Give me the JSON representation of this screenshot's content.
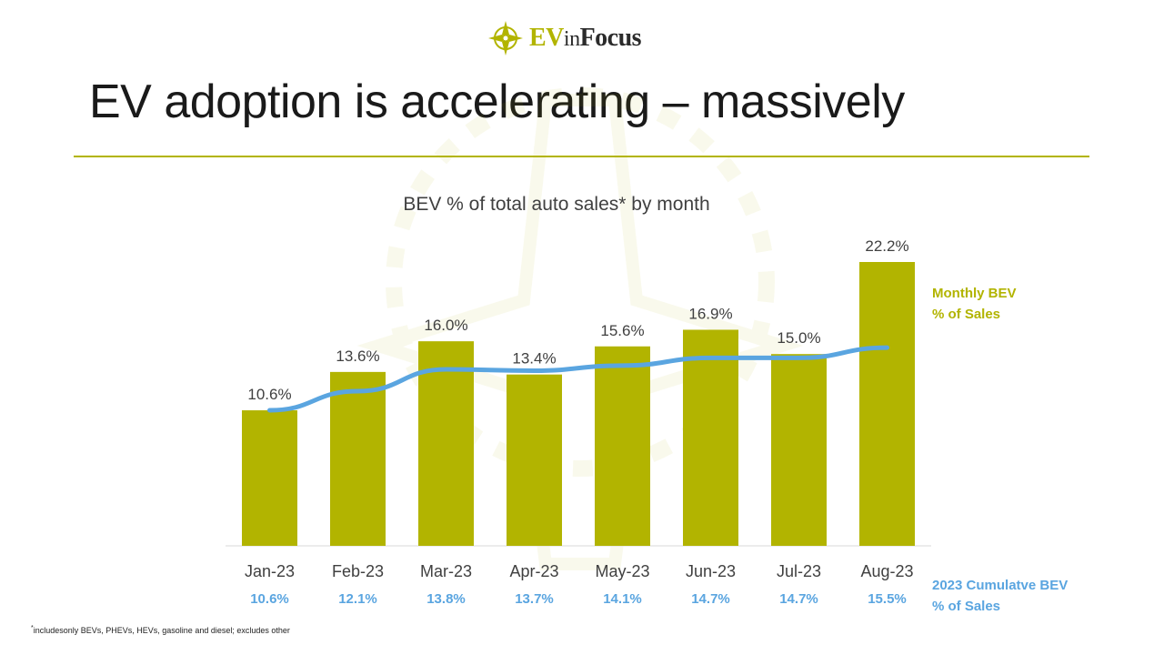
{
  "logo": {
    "ev": "EV",
    "in": "in",
    "focus": "Focus"
  },
  "header": {
    "title": "EV adoption is accelerating – massively"
  },
  "footnote": {
    "marker": "*",
    "text": "includesonly BEVs, PHEVs, HEVs, gasoline and diesel; excludes other"
  },
  "colors": {
    "bar": "#b2b400",
    "line": "#5aa5e0",
    "cumulative_text": "#5aa5e0",
    "axis": "#d9d9d9"
  },
  "chart_data": {
    "type": "bar",
    "title": "BEV % of total auto sales* by month",
    "categories": [
      "Jan-23",
      "Feb-23",
      "Mar-23",
      "Apr-23",
      "May-23",
      "Jun-23",
      "Jul-23",
      "Aug-23"
    ],
    "ylim": [
      0,
      25
    ],
    "series": [
      {
        "name": "Monthly BEV % of Sales",
        "legend_lines": [
          "Monthly BEV",
          "% of Sales"
        ],
        "type": "bar",
        "values": [
          10.6,
          13.6,
          16.0,
          13.4,
          15.6,
          16.9,
          15.0,
          22.2
        ],
        "labels": [
          "10.6%",
          "13.6%",
          "16.0%",
          "13.4%",
          "15.6%",
          "16.9%",
          "15.0%",
          "22.2%"
        ]
      },
      {
        "name": "2023 Cumulatve BEV % of Sales",
        "legend_lines": [
          "2023 Cumulatve BEV",
          "% of Sales"
        ],
        "type": "line",
        "values": [
          10.6,
          12.1,
          13.8,
          13.7,
          14.1,
          14.7,
          14.7,
          15.5
        ],
        "labels": [
          "10.6%",
          "12.1%",
          "13.8%",
          "13.7%",
          "14.1%",
          "14.7%",
          "14.7%",
          "15.5%"
        ]
      }
    ]
  }
}
